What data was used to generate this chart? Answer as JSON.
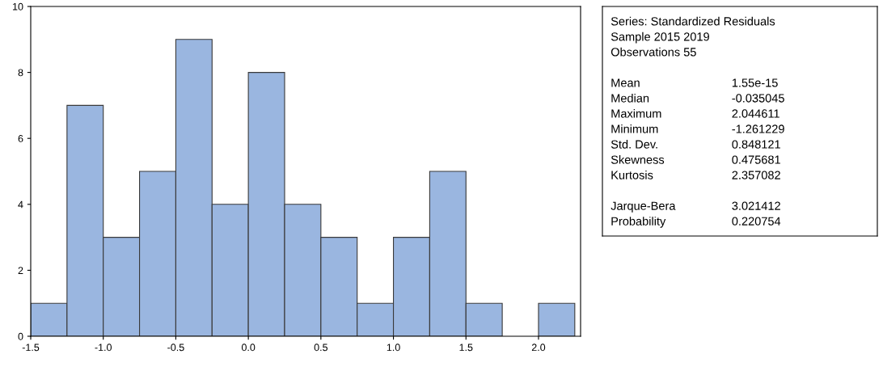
{
  "chart_data": [
    {
      "type": "histogram",
      "bins": [
        -1.5,
        -1.25,
        -1.0,
        -0.75,
        -0.5,
        -0.25,
        0.0,
        0.25,
        0.5,
        0.75,
        1.0,
        1.25,
        1.5,
        1.75,
        2.0,
        2.25
      ],
      "values": [
        1,
        7,
        3,
        5,
        9,
        4,
        8,
        4,
        3,
        1,
        3,
        5,
        1,
        0,
        1
      ],
      "color": "#9ab6e0",
      "xlim": [
        -1.5,
        2.29
      ],
      "xticks": [
        -1.5,
        {
          "value": -1.0,
          "label": "-1.0"
        },
        -0.5,
        {
          "value": 0.0,
          "label": "0.0"
        },
        0.5,
        {
          "value": 1.0,
          "label": "1.0"
        },
        1.5,
        {
          "value": 2.0,
          "label": "2.0"
        }
      ],
      "ylim": [
        0,
        10
      ],
      "yticks": [
        0,
        2,
        4,
        6,
        8,
        10
      ],
      "grid": false,
      "legend": false
    },
    {
      "type": "other",
      "annotations": [
        "Series: Standardized Residuals",
        "Sample 2015 2019",
        "Observations 55",
        "Mean",
        "1.55e-15",
        "Median",
        "-0.035045",
        "Maximum",
        "2.044611",
        "Minimum",
        "-1.261229",
        "Std. Dev.",
        "0.848121",
        "Skewness",
        "0.475681",
        "Kurtosis",
        "2.357082",
        "Jarque-Bera",
        "3.021412",
        "Probability",
        "0.220754"
      ]
    }
  ]
}
